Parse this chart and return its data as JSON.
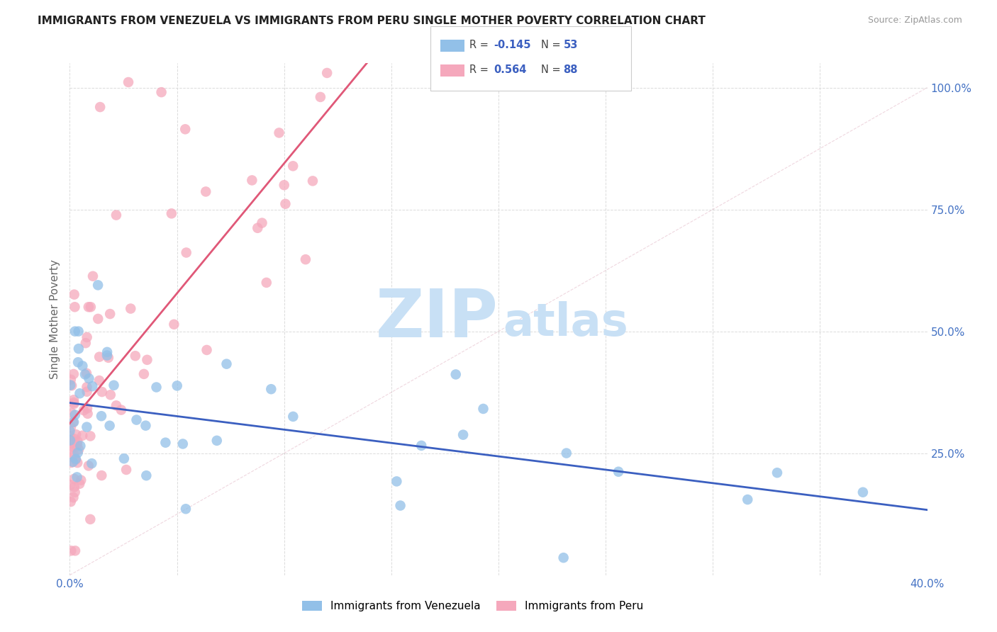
{
  "title": "IMMIGRANTS FROM VENEZUELA VS IMMIGRANTS FROM PERU SINGLE MOTHER POVERTY CORRELATION CHART",
  "source": "Source: ZipAtlas.com",
  "ylabel": "Single Mother Poverty",
  "blue_color": "#92c0e8",
  "pink_color": "#f5a8bc",
  "blue_line_color": "#3b5fc0",
  "pink_line_color": "#e05878",
  "watermark_zip_color": "#c8e0f5",
  "watermark_atlas_color": "#c8e0f5",
  "background_color": "#ffffff",
  "grid_color": "#d8d8d8",
  "xlim": [
    0.0,
    0.4
  ],
  "ylim": [
    0.0,
    1.05
  ],
  "diag_line_color": "#e0c0c8",
  "title_color": "#222222",
  "source_color": "#999999",
  "axis_label_color": "#4472c4",
  "ylabel_color": "#666666"
}
